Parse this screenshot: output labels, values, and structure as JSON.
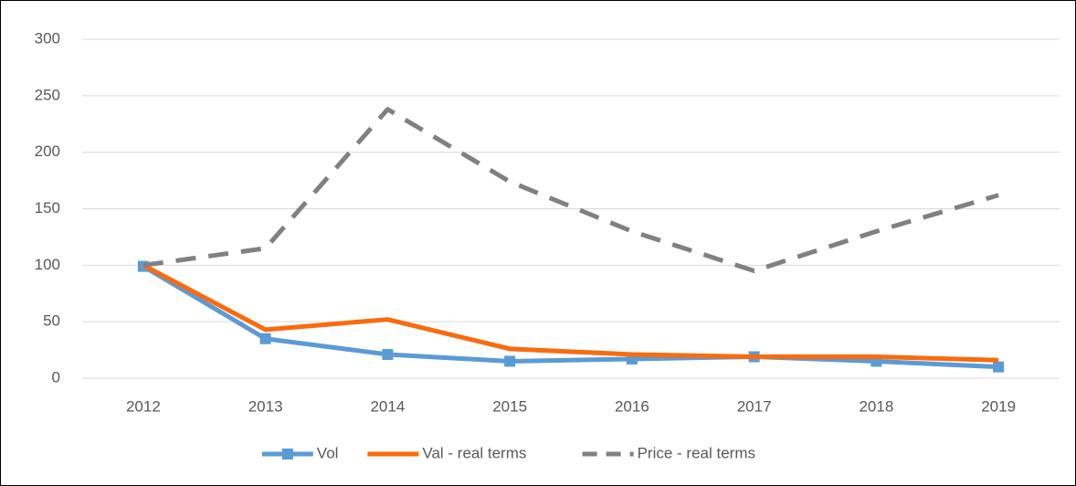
{
  "chart_data": {
    "type": "line",
    "categories": [
      "2012",
      "2013",
      "2014",
      "2015",
      "2016",
      "2017",
      "2018",
      "2019"
    ],
    "series": [
      {
        "name": "Vol",
        "color": "#5b9bd5",
        "marker": "square",
        "dash": false,
        "values": [
          99,
          35,
          21,
          15,
          17,
          19,
          15,
          10
        ]
      },
      {
        "name": "Val - real terms",
        "color": "#f96b0c",
        "marker": "none",
        "dash": false,
        "values": [
          100,
          43,
          52,
          26,
          21,
          19,
          19,
          16
        ]
      },
      {
        "name": "Price - real terms",
        "color": "#808080",
        "marker": "none",
        "dash": true,
        "values": [
          100,
          115,
          238,
          174,
          130,
          95,
          130,
          162
        ]
      }
    ],
    "ylim": [
      0,
      300
    ],
    "yticks": [
      0,
      50,
      100,
      150,
      200,
      250,
      300
    ],
    "grid": true,
    "legend": "bottom"
  }
}
